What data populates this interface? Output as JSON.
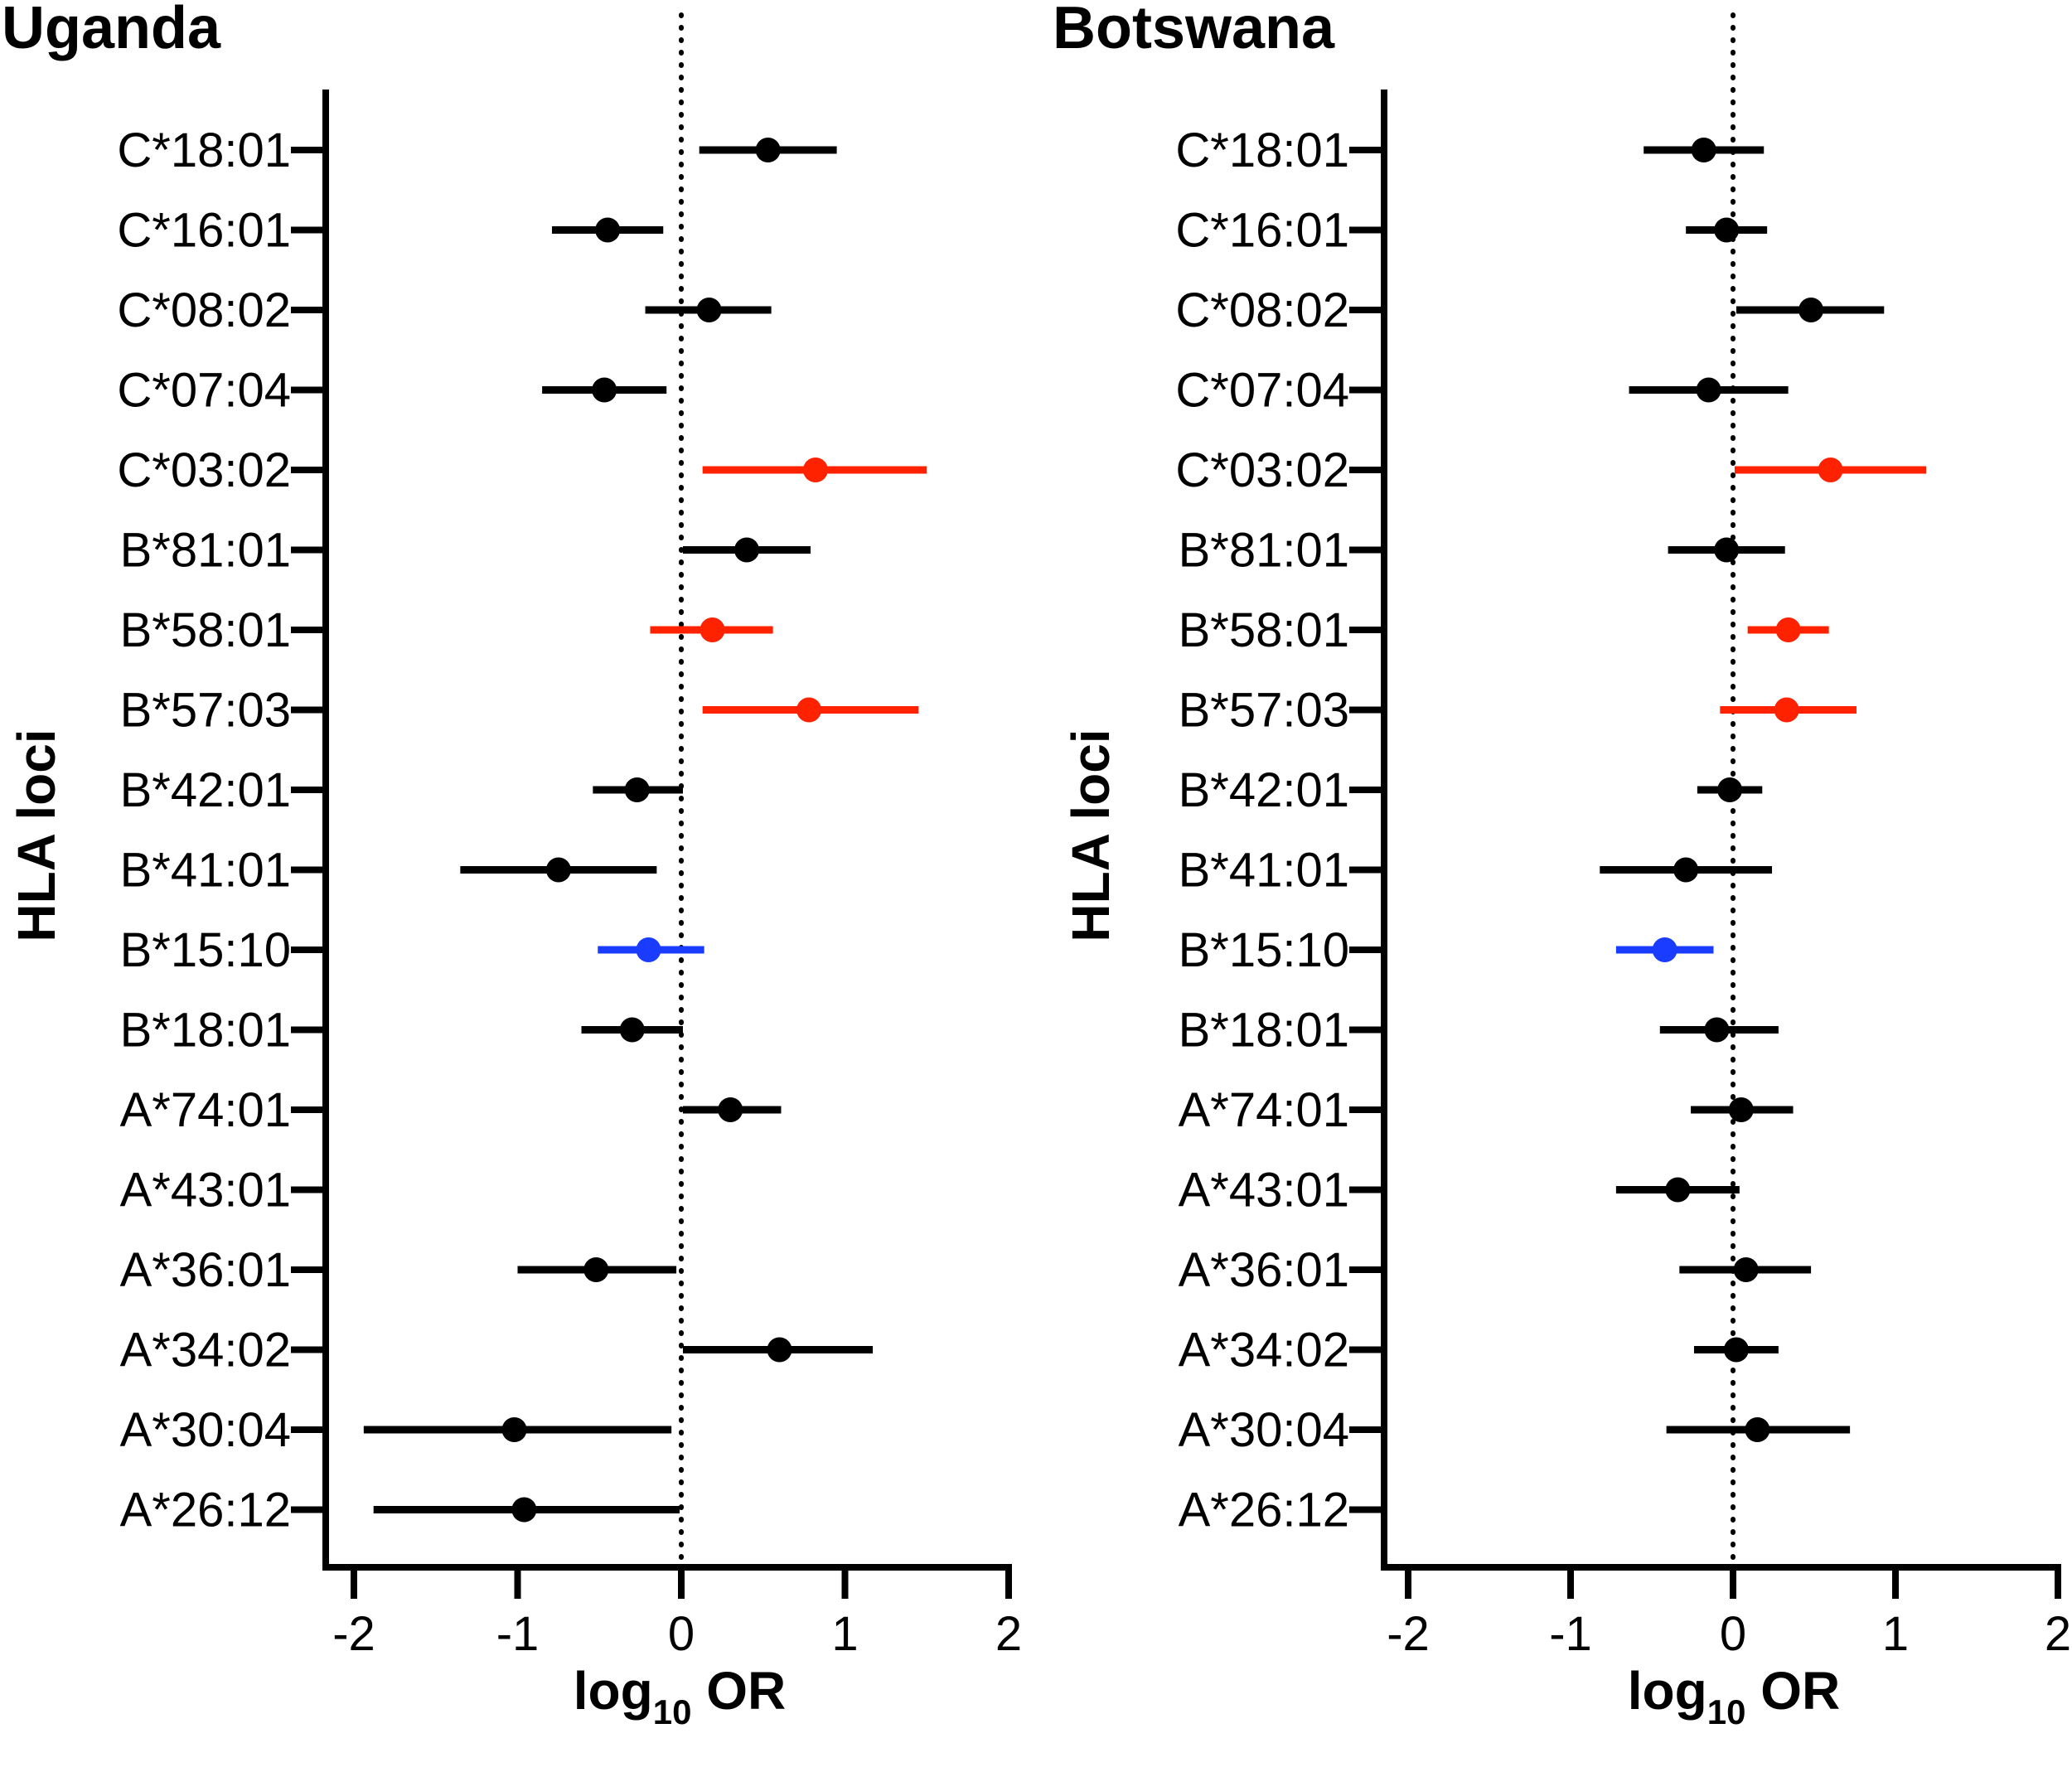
{
  "colors": {
    "default": "#000000",
    "risk": "#ff2200",
    "protective": "#1a3cff"
  },
  "x_axis_label": {
    "prefix": "log",
    "subscript": "10",
    "suffix": " OR"
  },
  "chart_data": [
    {
      "type": "forest",
      "title": "Uganda",
      "ylabel": "HLA loci",
      "xlim": [
        -2.2,
        2
      ],
      "xticks": [
        -2,
        -1,
        0,
        1,
        2
      ],
      "xtick_labels": [
        "-2",
        "-1",
        "0",
        "1",
        "2"
      ],
      "reference_line": 0,
      "categories": [
        "C*18:01",
        "C*16:01",
        "C*08:02",
        "C*07:04",
        "C*03:02",
        "B*81:01",
        "B*58:01",
        "B*57:03",
        "B*42:01",
        "B*41:01",
        "B*15:10",
        "B*18:01",
        "A*74:01",
        "A*43:01",
        "A*36:01",
        "A*34:02",
        "A*30:04",
        "A*26:12"
      ],
      "points": [
        {
          "allele": "C*18:01",
          "estimate": 0.53,
          "lower": 0.11,
          "upper": 0.95,
          "group": "default"
        },
        {
          "allele": "C*16:01",
          "estimate": -0.45,
          "lower": -0.79,
          "upper": -0.11,
          "group": "default"
        },
        {
          "allele": "C*08:02",
          "estimate": 0.17,
          "lower": -0.22,
          "upper": 0.55,
          "group": "default"
        },
        {
          "allele": "C*07:04",
          "estimate": -0.47,
          "lower": -0.85,
          "upper": -0.09,
          "group": "default"
        },
        {
          "allele": "C*03:02",
          "estimate": 0.82,
          "lower": 0.13,
          "upper": 1.5,
          "group": "risk"
        },
        {
          "allele": "B*81:01",
          "estimate": 0.4,
          "lower": 0.01,
          "upper": 0.79,
          "group": "default"
        },
        {
          "allele": "B*58:01",
          "estimate": 0.19,
          "lower": -0.19,
          "upper": 0.56,
          "group": "risk"
        },
        {
          "allele": "B*57:03",
          "estimate": 0.78,
          "lower": 0.13,
          "upper": 1.45,
          "group": "risk"
        },
        {
          "allele": "B*42:01",
          "estimate": -0.27,
          "lower": -0.54,
          "upper": 0.01,
          "group": "default"
        },
        {
          "allele": "B*41:01",
          "estimate": -0.75,
          "lower": -1.35,
          "upper": -0.15,
          "group": "default"
        },
        {
          "allele": "B*15:10",
          "estimate": -0.2,
          "lower": -0.51,
          "upper": 0.14,
          "group": "protective"
        },
        {
          "allele": "B*18:01",
          "estimate": -0.3,
          "lower": -0.61,
          "upper": 0.01,
          "group": "default"
        },
        {
          "allele": "A*74:01",
          "estimate": 0.3,
          "lower": 0.01,
          "upper": 0.61,
          "group": "default"
        },
        {
          "allele": "A*43:01",
          "estimate": null,
          "lower": null,
          "upper": null,
          "group": "default"
        },
        {
          "allele": "A*36:01",
          "estimate": -0.52,
          "lower": -1.0,
          "upper": -0.03,
          "group": "default"
        },
        {
          "allele": "A*34:02",
          "estimate": 0.6,
          "lower": 0.01,
          "upper": 1.17,
          "group": "default"
        },
        {
          "allele": "A*30:04",
          "estimate": -1.02,
          "lower": -1.94,
          "upper": -0.06,
          "group": "default"
        },
        {
          "allele": "A*26:12",
          "estimate": -0.96,
          "lower": -1.88,
          "upper": -0.01,
          "group": "default"
        }
      ]
    },
    {
      "type": "forest",
      "title": "Botswana",
      "ylabel": "HLA loci",
      "xlim": [
        -2.2,
        2
      ],
      "xticks": [
        -2,
        -1,
        0,
        1,
        2
      ],
      "xtick_labels": [
        "-2",
        "-1",
        "0",
        "1",
        "2"
      ],
      "reference_line": 0,
      "categories": [
        "C*18:01",
        "C*16:01",
        "C*08:02",
        "C*07:04",
        "C*03:02",
        "B*81:01",
        "B*58:01",
        "B*57:03",
        "B*42:01",
        "B*41:01",
        "B*15:10",
        "B*18:01",
        "A*74:01",
        "A*43:01",
        "A*36:01",
        "A*34:02",
        "A*30:04",
        "A*26:12"
      ],
      "points": [
        {
          "allele": "C*18:01",
          "estimate": -0.18,
          "lower": -0.55,
          "upper": 0.19,
          "group": "default"
        },
        {
          "allele": "C*16:01",
          "estimate": -0.04,
          "lower": -0.29,
          "upper": 0.21,
          "group": "default"
        },
        {
          "allele": "C*08:02",
          "estimate": 0.48,
          "lower": 0.02,
          "upper": 0.93,
          "group": "default"
        },
        {
          "allele": "C*07:04",
          "estimate": -0.15,
          "lower": -0.64,
          "upper": 0.34,
          "group": "default"
        },
        {
          "allele": "C*03:02",
          "estimate": 0.6,
          "lower": 0.01,
          "upper": 1.19,
          "group": "risk"
        },
        {
          "allele": "B*81:01",
          "estimate": -0.04,
          "lower": -0.4,
          "upper": 0.32,
          "group": "default"
        },
        {
          "allele": "B*58:01",
          "estimate": 0.34,
          "lower": 0.09,
          "upper": 0.59,
          "group": "risk"
        },
        {
          "allele": "B*57:03",
          "estimate": 0.33,
          "lower": -0.08,
          "upper": 0.76,
          "group": "risk"
        },
        {
          "allele": "B*42:01",
          "estimate": -0.02,
          "lower": -0.22,
          "upper": 0.18,
          "group": "default"
        },
        {
          "allele": "B*41:01",
          "estimate": -0.29,
          "lower": -0.82,
          "upper": 0.24,
          "group": "default"
        },
        {
          "allele": "B*15:10",
          "estimate": -0.42,
          "lower": -0.72,
          "upper": -0.12,
          "group": "protective"
        },
        {
          "allele": "B*18:01",
          "estimate": -0.1,
          "lower": -0.45,
          "upper": 0.28,
          "group": "default"
        },
        {
          "allele": "A*74:01",
          "estimate": 0.05,
          "lower": -0.26,
          "upper": 0.37,
          "group": "default"
        },
        {
          "allele": "A*43:01",
          "estimate": -0.34,
          "lower": -0.72,
          "upper": 0.04,
          "group": "default"
        },
        {
          "allele": "A*36:01",
          "estimate": 0.08,
          "lower": -0.33,
          "upper": 0.48,
          "group": "default"
        },
        {
          "allele": "A*34:02",
          "estimate": 0.02,
          "lower": -0.24,
          "upper": 0.28,
          "group": "default"
        },
        {
          "allele": "A*30:04",
          "estimate": 0.15,
          "lower": -0.41,
          "upper": 0.72,
          "group": "default"
        },
        {
          "allele": "A*26:12",
          "estimate": null,
          "lower": null,
          "upper": null,
          "group": "default"
        }
      ]
    }
  ]
}
